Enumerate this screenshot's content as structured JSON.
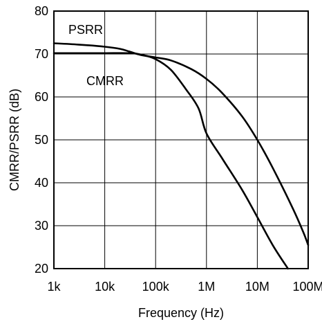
{
  "chart_data": {
    "type": "line",
    "title": "",
    "xlabel": "Frequency (Hz)",
    "ylabel": "CMRR/PSRR (dB)",
    "x_scale": "log",
    "xlim": [
      1000,
      100000000
    ],
    "ylim": [
      20,
      80
    ],
    "grid": true,
    "x_ticks": [
      1000,
      10000,
      100000,
      1000000,
      10000000,
      100000000
    ],
    "x_tick_labels": [
      "1k",
      "10k",
      "100k",
      "1M",
      "10M",
      "100M"
    ],
    "y_ticks": [
      20,
      30,
      40,
      50,
      60,
      70,
      80
    ],
    "y_tick_labels": [
      "20",
      "30",
      "40",
      "50",
      "60",
      "70",
      "80"
    ],
    "series": [
      {
        "name": "PSRR",
        "x": [
          1000,
          3000,
          10000,
          20000,
          30000,
          50000,
          100000,
          200000,
          500000,
          1000000,
          2000000,
          5000000,
          10000000,
          20000000,
          50000000,
          80000000,
          100000000
        ],
        "y": [
          72.5,
          72.2,
          71.7,
          71.2,
          70.6,
          69.8,
          69.2,
          68.5,
          66.5,
          64.2,
          61.0,
          55.5,
          50.0,
          43.5,
          34.0,
          28.5,
          25.5
        ]
      },
      {
        "name": "CMRR",
        "x": [
          1000,
          3000,
          10000,
          30000,
          50000,
          100000,
          200000,
          400000,
          700000,
          1000000,
          2000000,
          5000000,
          10000000,
          20000000,
          40000000
        ],
        "y": [
          70.2,
          70.2,
          70.2,
          70.2,
          69.9,
          68.8,
          66.3,
          61.7,
          57.3,
          51.5,
          45.8,
          38.4,
          32.0,
          25.5,
          20.0
        ]
      }
    ]
  }
}
